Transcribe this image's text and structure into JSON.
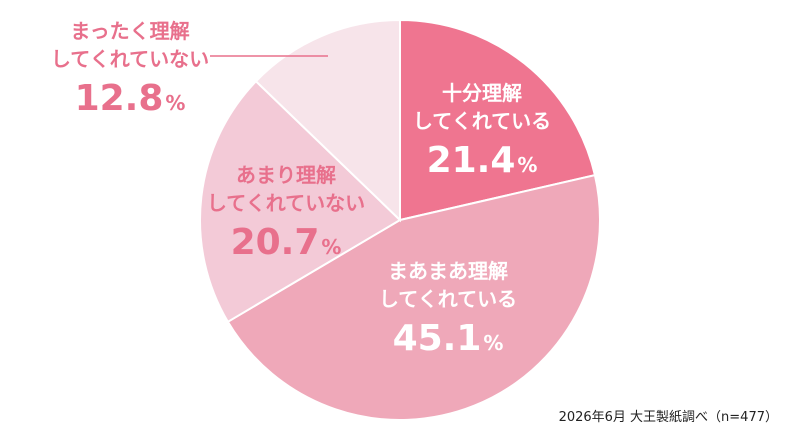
{
  "chart_data": {
    "type": "pie",
    "title": "",
    "start_angle_deg": 0,
    "direction": "clockwise",
    "unit": "%",
    "slices": [
      {
        "lines": [
          "十分理解",
          "してくれている"
        ],
        "value": 21.4,
        "value_text": "21.4",
        "color": "#ef7590",
        "text_color": "#ffffff"
      },
      {
        "lines": [
          "まあまあ理解",
          "してくれている"
        ],
        "value": 45.1,
        "value_text": "45.1",
        "color": "#efa8b9",
        "text_color": "#ffffff"
      },
      {
        "lines": [
          "あまり理解",
          "してくれていない"
        ],
        "value": 20.7,
        "value_text": "20.7",
        "color": "#f3cad7",
        "text_color": "#e8708c"
      },
      {
        "lines": [
          "まったく理解",
          "してくれていない"
        ],
        "value": 12.8,
        "value_text": "12.8",
        "color": "#f7e4ea",
        "text_color": "#e8708c"
      }
    ],
    "leader_color": "#e8708c"
  },
  "footer": {
    "source": "2026年6月 大王製紙調べ（n=477）"
  }
}
